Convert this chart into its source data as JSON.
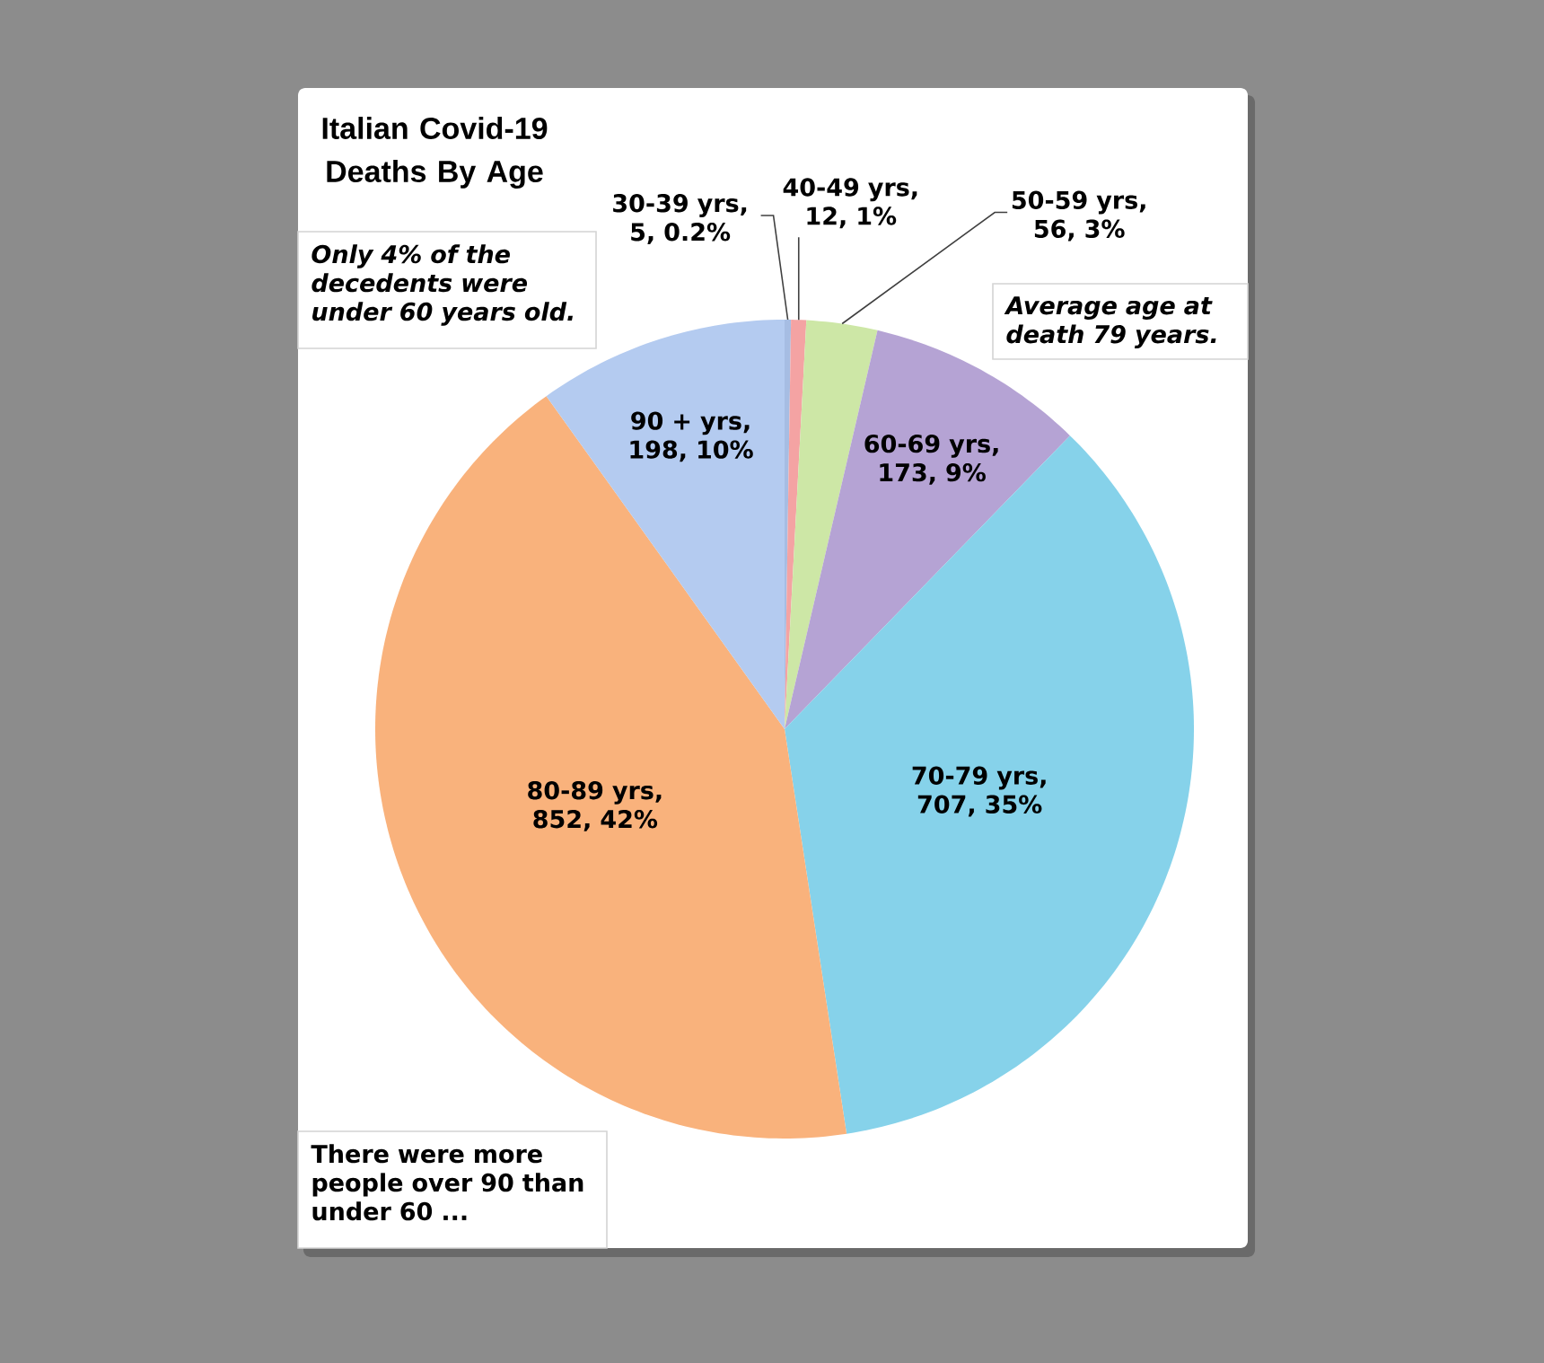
{
  "chart_data": {
    "type": "pie",
    "title": "Italian Covid-19 Deaths By Age",
    "categories": [
      null,
      null,
      null,
      null,
      null,
      null,
      null
    ],
    "values": [
      5,
      12,
      56,
      173,
      707,
      852,
      198
    ],
    "value_labels": [
      "30-39 yrs, 5, 0.2%",
      "40-49 yrs, 12, 1%",
      "50-59 yrs, 56, 3%",
      "60-69 yrs, 173, 9%",
      "70-79 yrs, 707, 35%",
      "80-89 yrs, 852, 42%",
      "90 + yrs, 198, 10%"
    ],
    "colors": [
      "#a6bde3",
      "#f4a3a3",
      "#cde7a6",
      "#b5a3d4",
      "#86d2ea",
      "#f9b27c",
      "#b4cbf0"
    ],
    "annotations": [
      "Only 4% of the decedents were under 60 years old.",
      "Average age at death 79 years.",
      "There were more people over 90 than under 60 ..."
    ]
  }
}
